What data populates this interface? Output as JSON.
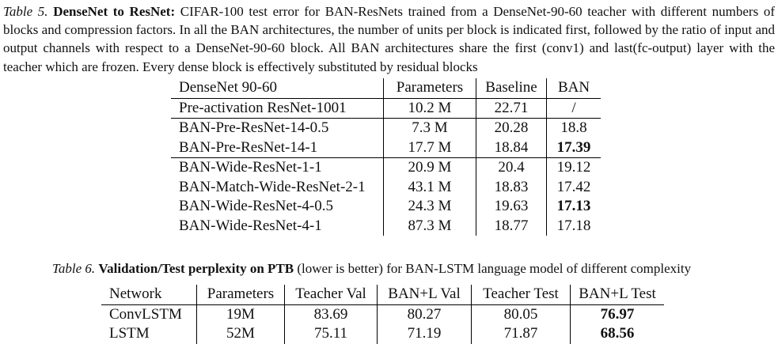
{
  "table5": {
    "caption": {
      "label": "Table 5.",
      "title": "DenseNet to ResNet:",
      "text": " CIFAR-100 test error for BAN-ResNets trained from a DenseNet-90-60 teacher with different numbers of blocks and compression factors. In all the BAN architectures, the number of units per block is indicated first, followed by the ratio of input and output channels with respect to a DenseNet-90-60 block. All BAN architectures share the first (conv1) and last(fc-output) layer with the teacher which are frozen. Every dense block is effectively substituted by residual blocks"
    },
    "columns": [
      "DenseNet 90-60",
      "Parameters",
      "Baseline",
      "BAN"
    ],
    "rows": [
      {
        "name": "Pre-activation ResNet-1001",
        "params": "10.2 M",
        "baseline": "22.71",
        "ban": "/",
        "bold": false
      },
      {
        "name": "BAN-Pre-ResNet-14-0.5",
        "params": "7.3 M",
        "baseline": "20.28",
        "ban": "18.8",
        "bold": false
      },
      {
        "name": "BAN-Pre-ResNet-14-1",
        "params": "17.7 M",
        "baseline": "18.84",
        "ban": "17.39",
        "bold": true
      },
      {
        "name": "BAN-Wide-ResNet-1-1",
        "params": "20.9 M",
        "baseline": "20.4",
        "ban": "19.12",
        "bold": false
      },
      {
        "name": "BAN-Match-Wide-ResNet-2-1",
        "params": "43.1 M",
        "baseline": "18.83",
        "ban": "17.42",
        "bold": false
      },
      {
        "name": "BAN-Wide-ResNet-4-0.5",
        "params": "24.3 M",
        "baseline": "19.63",
        "ban": "17.13",
        "bold": true
      },
      {
        "name": "BAN-Wide-ResNet-4-1",
        "params": "87.3 M",
        "baseline": "18.77",
        "ban": "17.18",
        "bold": false
      }
    ]
  },
  "table6": {
    "caption": {
      "label": "Table 6.",
      "title": "Validation/Test perplexity on PTB",
      "text": " (lower is better) for BAN-LSTM language model of different complexity"
    },
    "columns": [
      "Network",
      "Parameters",
      "Teacher Val",
      "BAN+L Val",
      "Teacher Test",
      "BAN+L Test"
    ],
    "rows": [
      {
        "network": "ConvLSTM",
        "params": "19M",
        "teacher_val": "83.69",
        "ban_val": "80.27",
        "teacher_test": "80.05",
        "ban_test": "76.97"
      },
      {
        "network": "LSTM",
        "params": "52M",
        "teacher_val": "75.11",
        "ban_val": "71.19",
        "teacher_test": "71.87",
        "ban_test": "68.56"
      }
    ]
  }
}
